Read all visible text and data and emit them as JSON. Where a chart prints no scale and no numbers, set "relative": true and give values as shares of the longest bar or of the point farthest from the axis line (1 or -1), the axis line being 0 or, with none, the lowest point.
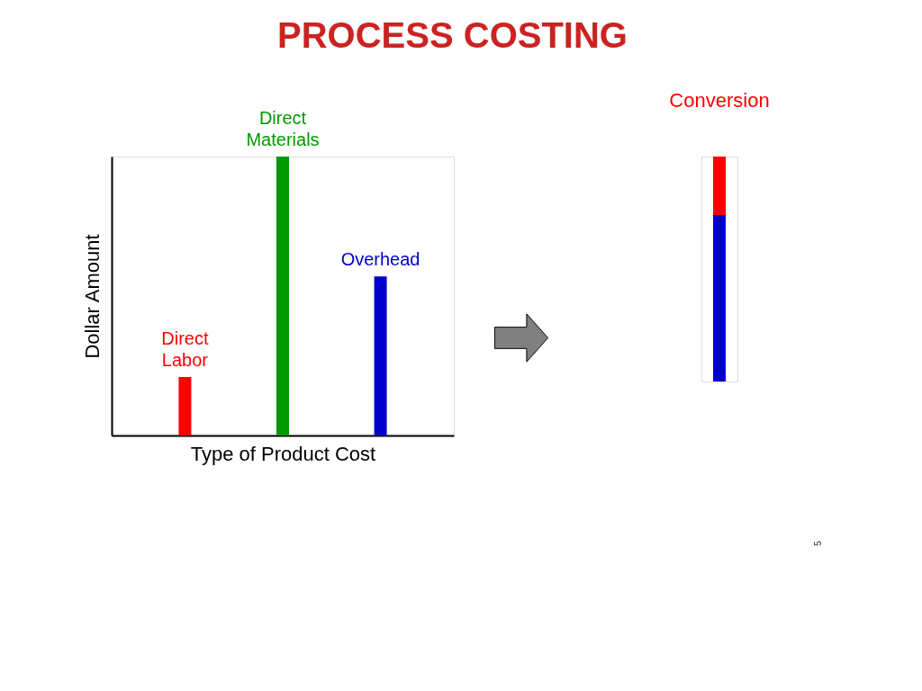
{
  "chart_data": [
    {
      "type": "bar",
      "title": "PROCESS COSTING",
      "xlabel": "Type of Product Cost",
      "ylabel": "Dollar Amount",
      "categories": [
        "Direct Labor",
        "Direct Materials",
        "Overhead"
      ],
      "values": [
        0.21,
        1,
        0.57
      ],
      "colors": [
        "#ff0000",
        "#009900",
        "#0000cc"
      ],
      "relative": true
    },
    {
      "type": "bar",
      "title": "Conversion",
      "stacked": true,
      "relative": true,
      "categories": [
        null
      ],
      "series": [
        {
          "color": "#0000cc",
          "values": [
            0.74
          ]
        },
        {
          "color": "#ff0000",
          "values": [
            0.26
          ]
        }
      ],
      "annotations": [
        "5"
      ]
    }
  ]
}
